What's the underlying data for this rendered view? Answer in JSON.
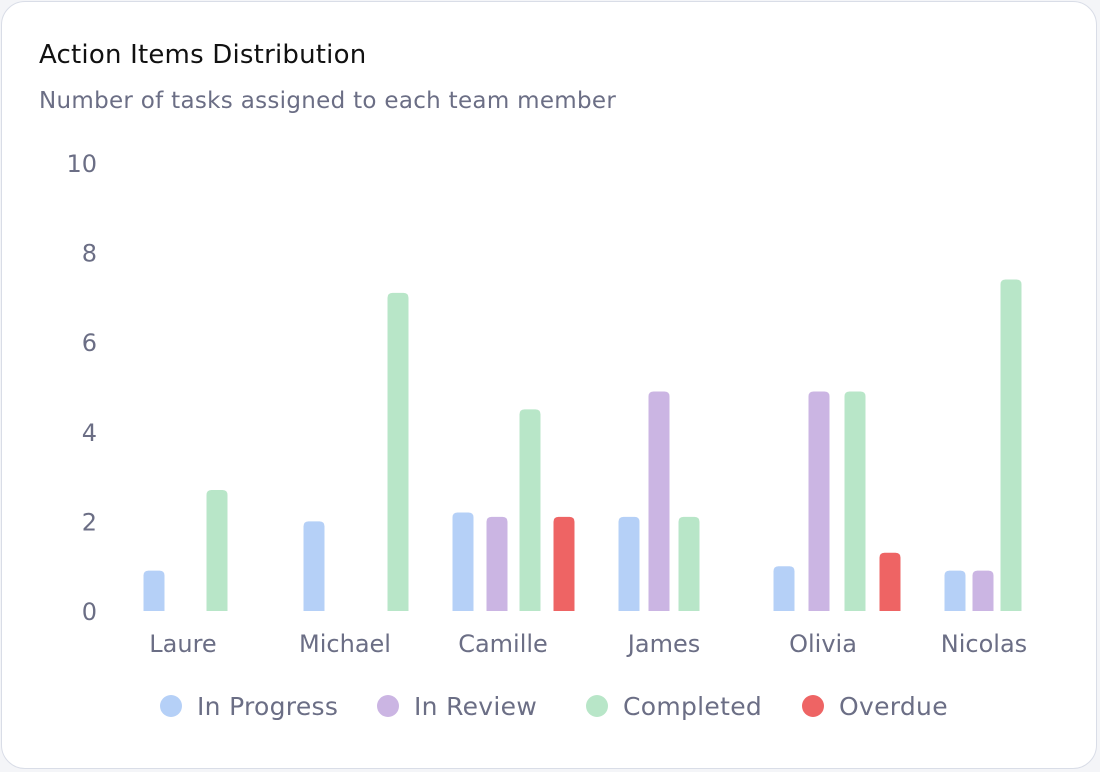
{
  "title": "Action Items Distribution",
  "subtitle": "Number of tasks assigned to each team member",
  "chart_data": {
    "type": "bar",
    "title": "Action Items Distribution",
    "subtitle": "Number of tasks assigned to each team member",
    "xlabel": "",
    "ylabel": "",
    "ylim": [
      0,
      10
    ],
    "yticks": [
      0,
      2,
      4,
      6,
      8,
      10
    ],
    "grid": false,
    "legend_position": "bottom",
    "categories": [
      "Laure",
      "Michael",
      "Camille",
      "James",
      "Olivia",
      "Nicolas"
    ],
    "series": [
      {
        "name": "In Progress",
        "color": "#b5d0f7",
        "values": [
          0.9,
          2.0,
          2.2,
          2.1,
          1.0,
          0.9
        ]
      },
      {
        "name": "In Review",
        "color": "#cbb5e3",
        "values": [
          0,
          0,
          2.1,
          4.9,
          4.9,
          0.9
        ]
      },
      {
        "name": "Completed",
        "color": "#b8e6c8",
        "values": [
          2.7,
          7.1,
          4.5,
          2.1,
          4.9,
          7.4
        ]
      },
      {
        "name": "Overdue",
        "color": "#ee6464",
        "values": [
          0,
          0,
          2.1,
          0,
          1.3,
          0
        ]
      }
    ]
  }
}
